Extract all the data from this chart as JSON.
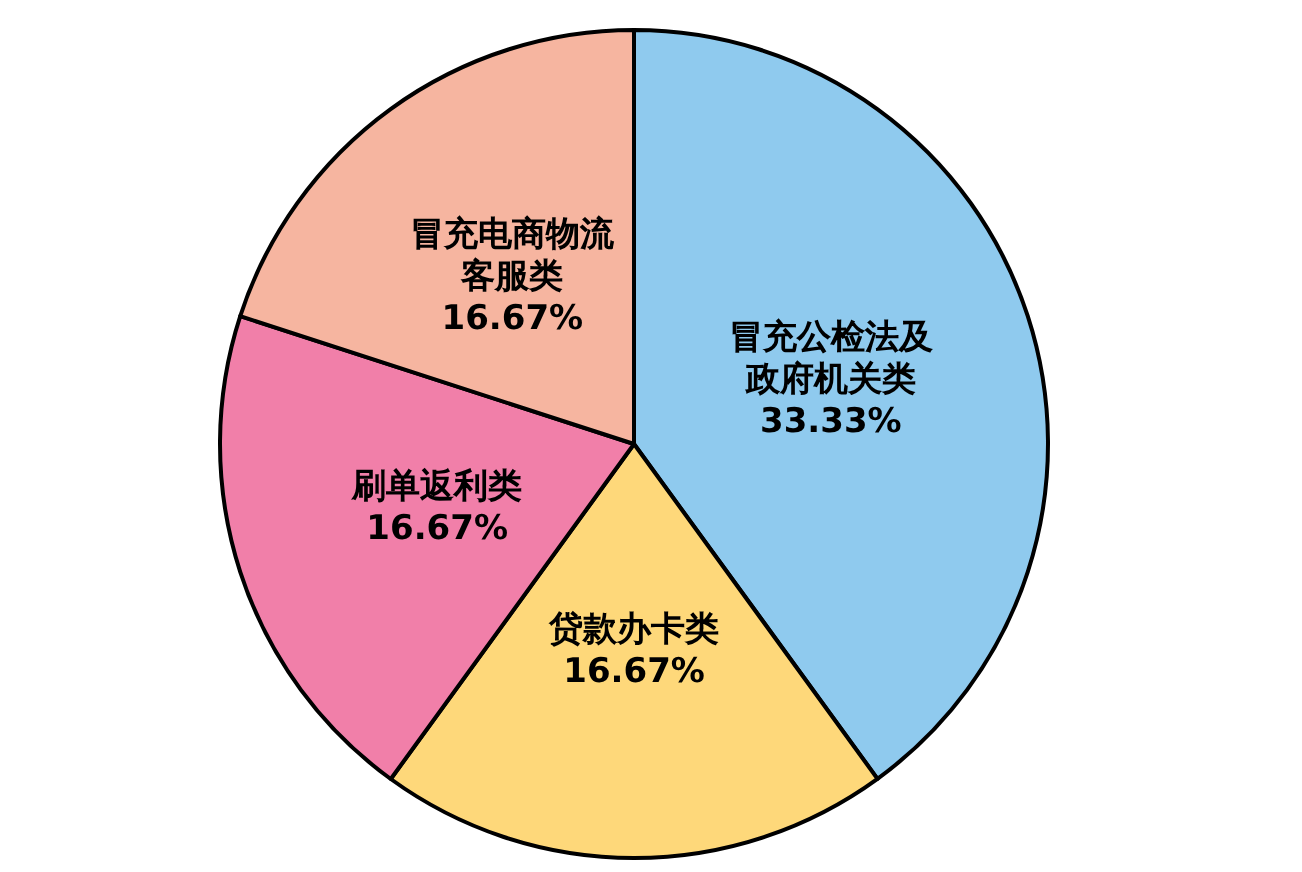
{
  "chart_data": {
    "type": "pie",
    "categories": [
      "冒充公检法及政府机关类",
      "贷款办卡类",
      "刷单返利类",
      "冒充电商物流客服类"
    ],
    "values": [
      33.33,
      16.67,
      16.67,
      16.67
    ],
    "value_labels": [
      "33.33%",
      "16.67%",
      "16.67%",
      "16.67%"
    ],
    "colors": [
      "#8fcaee",
      "#fed87a",
      "#f17fa9",
      "#f6b5a0"
    ]
  }
}
